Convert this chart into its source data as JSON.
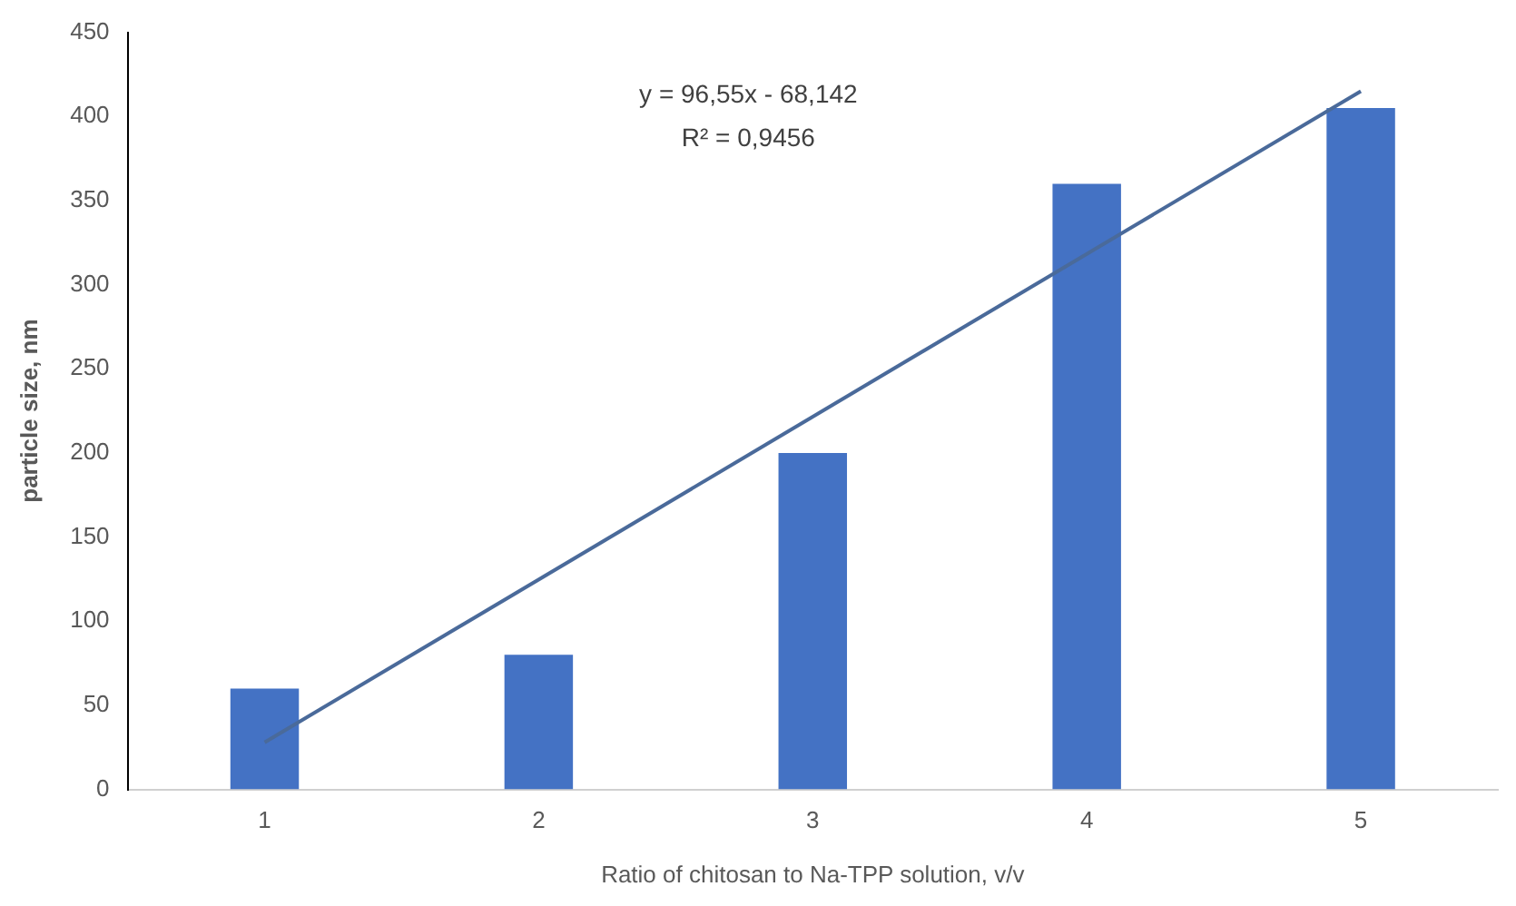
{
  "chart_data": {
    "type": "bar",
    "xlabel": "Ratio of chitosan to Na-TPP solution, v/v",
    "ylabel": "particle size, nm",
    "categories": [
      "1",
      "2",
      "3",
      "4",
      "5"
    ],
    "series": [
      {
        "color": "#4472c4",
        "values": [
          60,
          80,
          200,
          360,
          405
        ]
      },
      {
        "type": "line",
        "color": "#4a6a9a",
        "x": [
          "1",
          "5"
        ],
        "values": [
          28,
          415
        ]
      }
    ],
    "ylim": [
      0,
      450
    ],
    "yticks": [
      0,
      50,
      100,
      150,
      200,
      250,
      300,
      350,
      400,
      450
    ],
    "grid": false,
    "legend": false,
    "marker": "none",
    "annotations": [
      "y = 96,55x - 68,142",
      "R² = 0,9456"
    ]
  }
}
